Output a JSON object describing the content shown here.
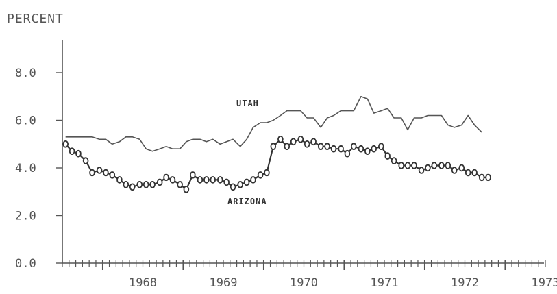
{
  "chart_data": {
    "type": "line",
    "ylabel": "PERCENT",
    "xlabel": "",
    "title": "",
    "ylim": [
      0,
      9.5
    ],
    "xlim": [
      1967.5,
      1973.5
    ],
    "yticks": [
      {
        "value": 0,
        "label": "0.0"
      },
      {
        "value": 2,
        "label": "2.0"
      },
      {
        "value": 4,
        "label": "4.0"
      },
      {
        "value": 6,
        "label": "6.0"
      },
      {
        "value": 8,
        "label": "8.0"
      }
    ],
    "xticks": [
      {
        "value": 1968,
        "label": "1968"
      },
      {
        "value": 1969,
        "label": "1969"
      },
      {
        "value": 1970,
        "label": "1970"
      },
      {
        "value": 1971,
        "label": "1971"
      },
      {
        "value": 1972,
        "label": "1972"
      },
      {
        "value": 1973,
        "label": "1973"
      }
    ],
    "grid": false,
    "series": [
      {
        "name": "UTAH",
        "marker": "none",
        "color": "#555555",
        "points": [
          [
            1967.54,
            5.3
          ],
          [
            1967.62,
            5.3
          ],
          [
            1967.7,
            5.3
          ],
          [
            1967.79,
            5.3
          ],
          [
            1967.87,
            5.3
          ],
          [
            1967.96,
            5.2
          ],
          [
            1968.04,
            5.2
          ],
          [
            1968.12,
            5.0
          ],
          [
            1968.21,
            5.1
          ],
          [
            1968.29,
            5.3
          ],
          [
            1968.37,
            5.3
          ],
          [
            1968.46,
            5.2
          ],
          [
            1968.54,
            4.8
          ],
          [
            1968.62,
            4.7
          ],
          [
            1968.71,
            4.8
          ],
          [
            1968.79,
            4.9
          ],
          [
            1968.87,
            4.8
          ],
          [
            1968.96,
            4.8
          ],
          [
            1969.04,
            5.1
          ],
          [
            1969.12,
            5.2
          ],
          [
            1969.21,
            5.2
          ],
          [
            1969.29,
            5.1
          ],
          [
            1969.37,
            5.2
          ],
          [
            1969.46,
            5.0
          ],
          [
            1969.54,
            5.1
          ],
          [
            1969.62,
            5.2
          ],
          [
            1969.71,
            4.9
          ],
          [
            1969.79,
            5.2
          ],
          [
            1969.87,
            5.7
          ],
          [
            1969.96,
            5.9
          ],
          [
            1970.04,
            5.9
          ],
          [
            1970.12,
            6.0
          ],
          [
            1970.21,
            6.2
          ],
          [
            1970.29,
            6.4
          ],
          [
            1970.37,
            6.4
          ],
          [
            1970.46,
            6.4
          ],
          [
            1970.54,
            6.1
          ],
          [
            1970.62,
            6.1
          ],
          [
            1970.71,
            5.7
          ],
          [
            1970.79,
            6.1
          ],
          [
            1970.87,
            6.2
          ],
          [
            1970.96,
            6.4
          ],
          [
            1971.04,
            6.4
          ],
          [
            1971.12,
            6.4
          ],
          [
            1971.21,
            7.0
          ],
          [
            1971.29,
            6.9
          ],
          [
            1971.37,
            6.3
          ],
          [
            1971.46,
            6.4
          ],
          [
            1971.54,
            6.5
          ],
          [
            1971.62,
            6.1
          ],
          [
            1971.71,
            6.1
          ],
          [
            1971.79,
            5.6
          ],
          [
            1971.87,
            6.1
          ],
          [
            1971.96,
            6.1
          ],
          [
            1972.04,
            6.2
          ],
          [
            1972.12,
            6.2
          ],
          [
            1972.21,
            6.2
          ],
          [
            1972.29,
            5.8
          ],
          [
            1972.37,
            5.7
          ],
          [
            1972.46,
            5.8
          ],
          [
            1972.54,
            6.2
          ],
          [
            1972.62,
            5.8
          ],
          [
            1972.71,
            5.5
          ]
        ]
      },
      {
        "name": "ARIZONA",
        "marker": "circle",
        "color": "#333333",
        "points": [
          [
            1967.54,
            5.0
          ],
          [
            1967.62,
            4.7
          ],
          [
            1967.7,
            4.6
          ],
          [
            1967.79,
            4.3
          ],
          [
            1967.87,
            3.8
          ],
          [
            1967.96,
            3.9
          ],
          [
            1968.04,
            3.8
          ],
          [
            1968.12,
            3.7
          ],
          [
            1968.21,
            3.5
          ],
          [
            1968.29,
            3.3
          ],
          [
            1968.37,
            3.2
          ],
          [
            1968.46,
            3.3
          ],
          [
            1968.54,
            3.3
          ],
          [
            1968.62,
            3.3
          ],
          [
            1968.71,
            3.4
          ],
          [
            1968.79,
            3.6
          ],
          [
            1968.87,
            3.5
          ],
          [
            1968.96,
            3.3
          ],
          [
            1969.04,
            3.1
          ],
          [
            1969.12,
            3.7
          ],
          [
            1969.21,
            3.5
          ],
          [
            1969.29,
            3.5
          ],
          [
            1969.37,
            3.5
          ],
          [
            1969.46,
            3.5
          ],
          [
            1969.54,
            3.4
          ],
          [
            1969.62,
            3.2
          ],
          [
            1969.71,
            3.3
          ],
          [
            1969.79,
            3.4
          ],
          [
            1969.87,
            3.5
          ],
          [
            1969.96,
            3.7
          ],
          [
            1970.04,
            3.8
          ],
          [
            1970.12,
            4.9
          ],
          [
            1970.21,
            5.2
          ],
          [
            1970.29,
            4.9
          ],
          [
            1970.37,
            5.1
          ],
          [
            1970.46,
            5.2
          ],
          [
            1970.54,
            5.0
          ],
          [
            1970.62,
            5.1
          ],
          [
            1970.71,
            4.9
          ],
          [
            1970.79,
            4.9
          ],
          [
            1970.87,
            4.8
          ],
          [
            1970.96,
            4.8
          ],
          [
            1971.04,
            4.6
          ],
          [
            1971.12,
            4.9
          ],
          [
            1971.21,
            4.8
          ],
          [
            1971.29,
            4.7
          ],
          [
            1971.37,
            4.8
          ],
          [
            1971.46,
            4.9
          ],
          [
            1971.54,
            4.5
          ],
          [
            1971.62,
            4.3
          ],
          [
            1971.71,
            4.1
          ],
          [
            1971.79,
            4.1
          ],
          [
            1971.87,
            4.1
          ],
          [
            1971.96,
            3.9
          ],
          [
            1972.04,
            4.0
          ],
          [
            1972.12,
            4.1
          ],
          [
            1972.21,
            4.1
          ],
          [
            1972.29,
            4.1
          ],
          [
            1972.37,
            3.9
          ],
          [
            1972.46,
            4.0
          ],
          [
            1972.54,
            3.8
          ],
          [
            1972.62,
            3.8
          ],
          [
            1972.71,
            3.6
          ],
          [
            1972.79,
            3.6
          ]
        ]
      }
    ]
  }
}
